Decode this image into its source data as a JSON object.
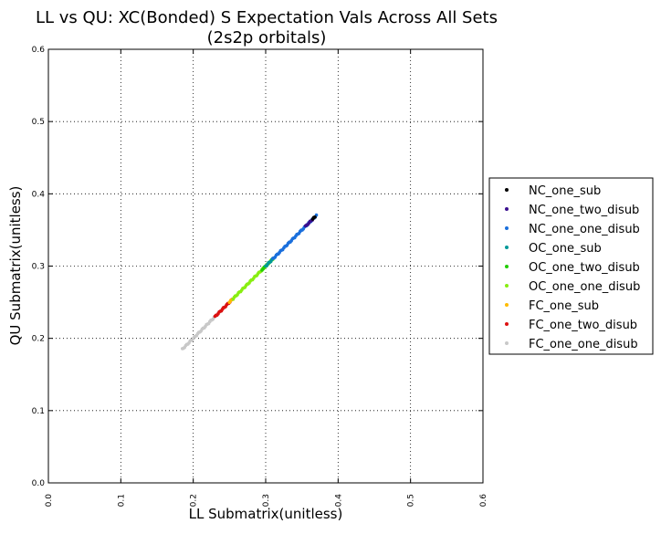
{
  "chart_data": {
    "type": "scatter",
    "title_line1": "LL vs QU: XC(Bonded) S Expectation Vals Across All Sets",
    "title_line2": "(2s2p orbitals)",
    "xlabel": "LL Submatrix(unitless)",
    "ylabel": "QU Submatrix(unitless)",
    "xlim": [
      0.0,
      0.6
    ],
    "ylim": [
      0.0,
      0.6
    ],
    "xticks": [
      "0.0",
      "0.1",
      "0.2",
      "0.3",
      "0.4",
      "0.5",
      "0.6"
    ],
    "yticks": [
      "0.0",
      "0.1",
      "0.2",
      "0.3",
      "0.4",
      "0.5",
      "0.6"
    ],
    "grid": true,
    "legend_position": "right, outside plot",
    "series": [
      {
        "name": "NC_one_sub",
        "color": "#000000",
        "x_range": [
          0.365,
          0.368
        ]
      },
      {
        "name": "NC_one_two_disub",
        "color": "#3b0f8f",
        "x_range": [
          0.355,
          0.366
        ]
      },
      {
        "name": "NC_one_one_disub",
        "color": "#1a6fdc",
        "x_range": [
          0.31,
          0.37
        ]
      },
      {
        "name": "OC_one_sub",
        "color": "#009999",
        "x_range": [
          0.3,
          0.31
        ]
      },
      {
        "name": "OC_one_two_disub",
        "color": "#22cc00",
        "x_range": [
          0.295,
          0.31
        ]
      },
      {
        "name": "OC_one_one_disub",
        "color": "#88ee11",
        "x_range": [
          0.255,
          0.31
        ]
      },
      {
        "name": "FC_one_sub",
        "color": "#ffbb00",
        "x_range": [
          0.25,
          0.255
        ]
      },
      {
        "name": "FC_one_two_disub",
        "color": "#dd1111",
        "x_range": [
          0.23,
          0.255
        ]
      },
      {
        "name": "FC_one_one_disub",
        "color": "#c8c8c8",
        "x_range": [
          0.185,
          0.25
        ]
      }
    ]
  }
}
